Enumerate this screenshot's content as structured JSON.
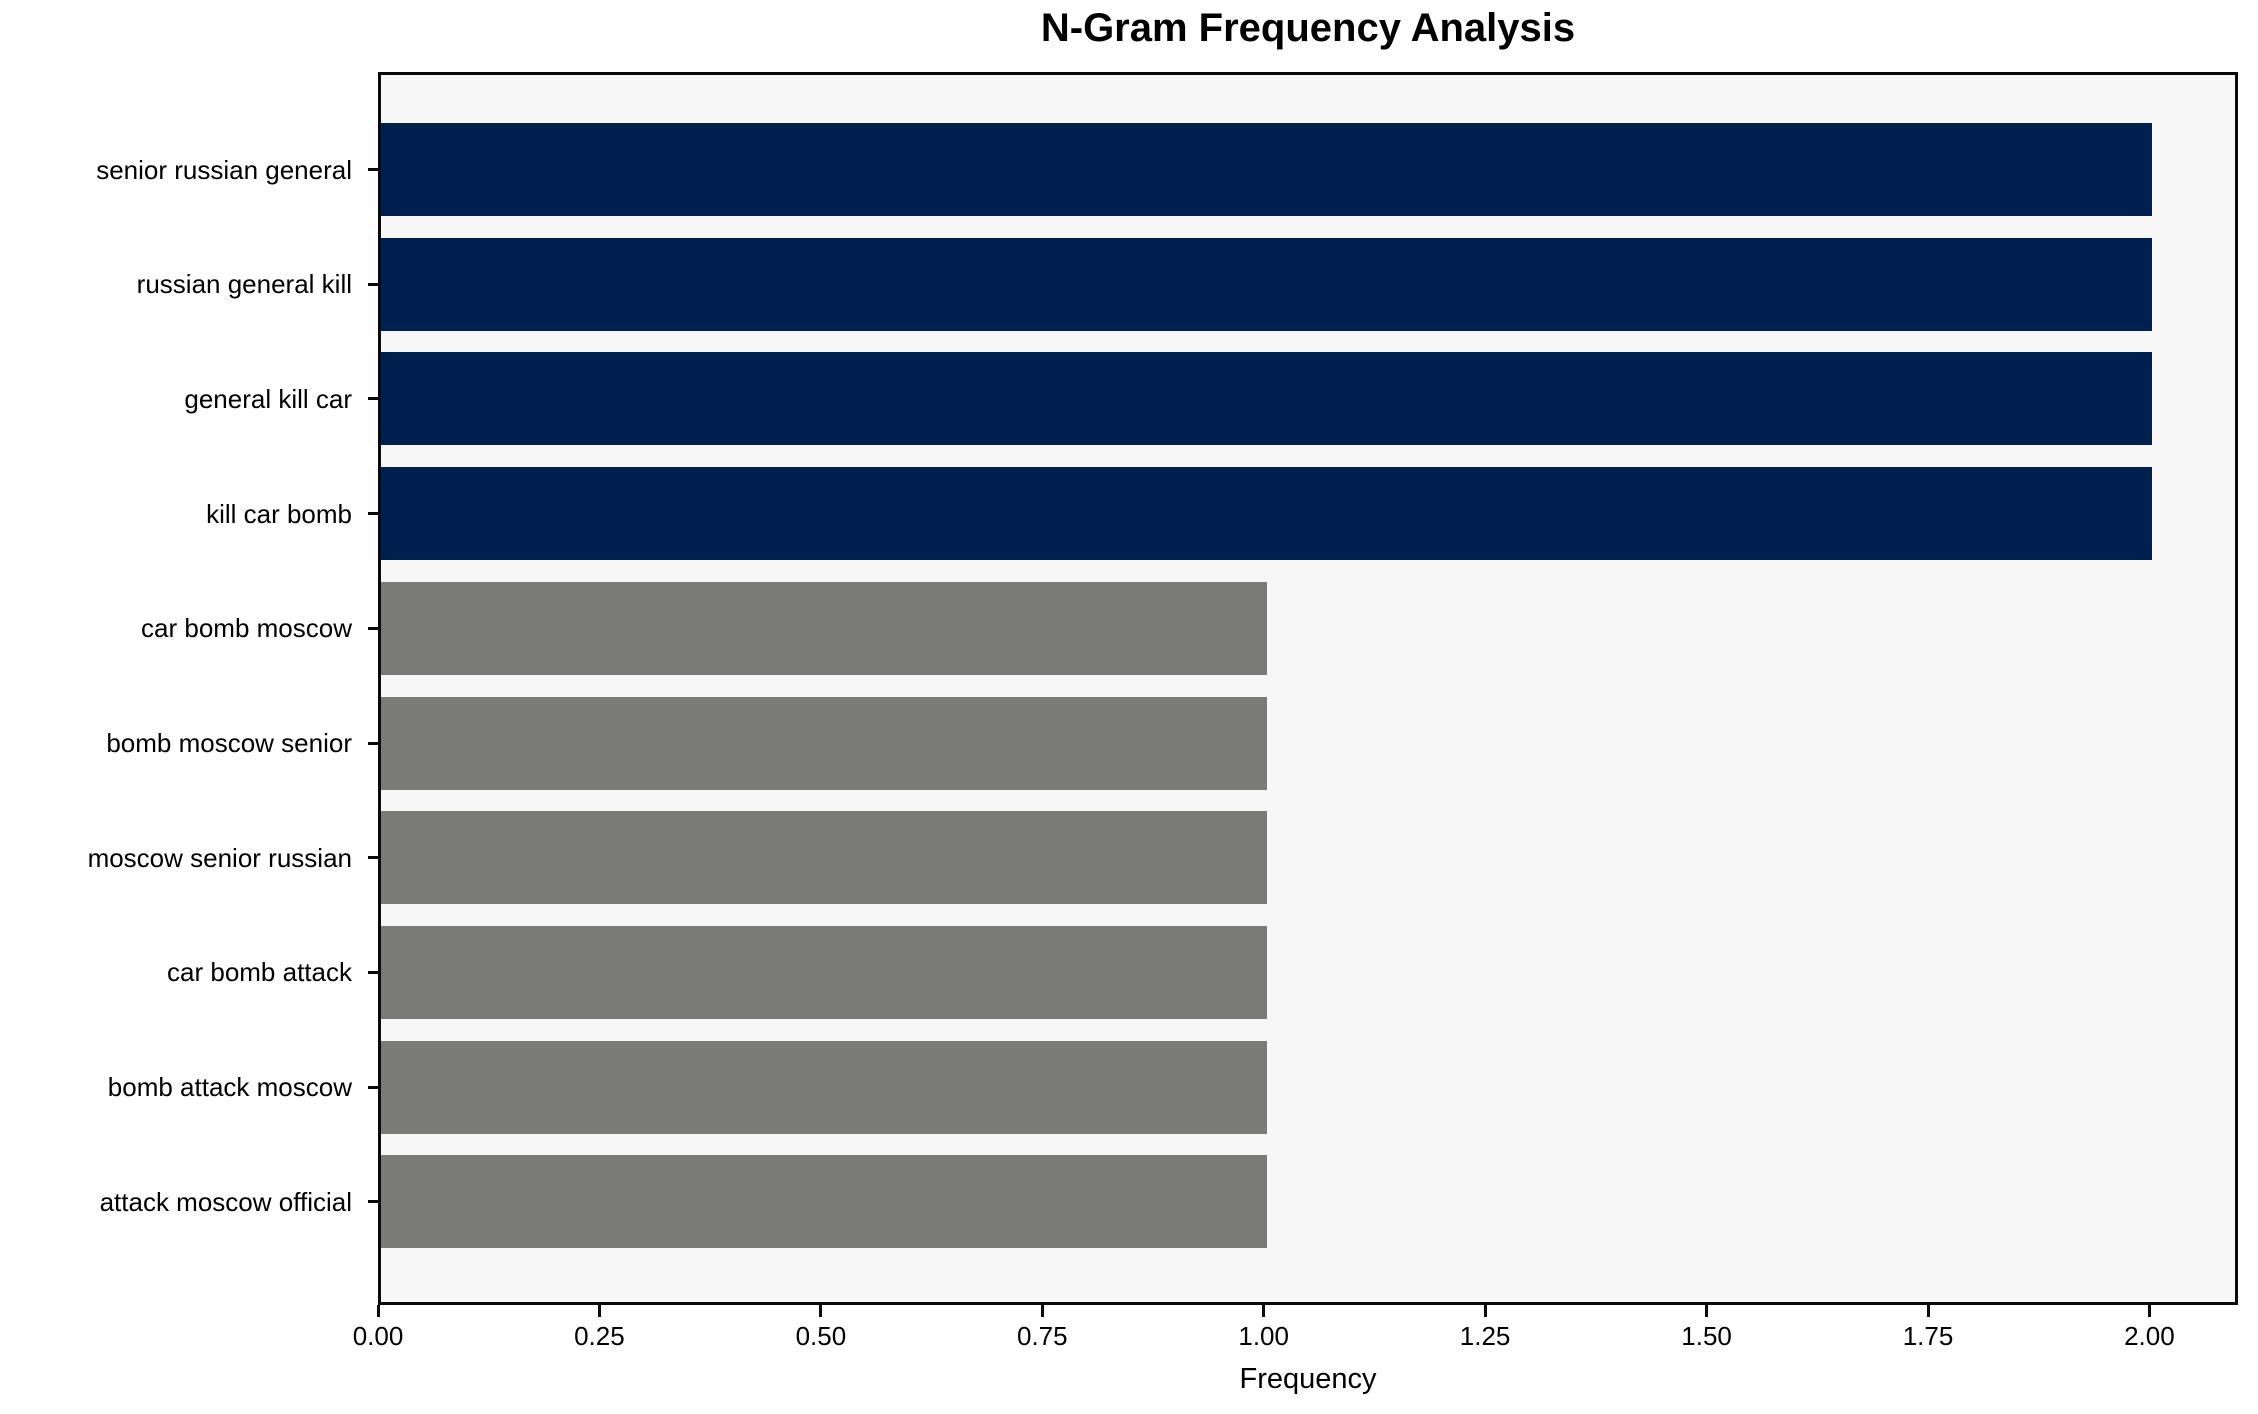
{
  "chart_data": {
    "type": "bar",
    "orientation": "horizontal",
    "title": "N-Gram Frequency Analysis",
    "xlabel": "Frequency",
    "ylabel": "",
    "categories": [
      "senior russian general",
      "russian general kill",
      "general kill car",
      "kill car bomb",
      "car bomb moscow",
      "bomb moscow senior",
      "moscow senior russian",
      "car bomb attack",
      "bomb attack moscow",
      "attack moscow official"
    ],
    "values": [
      2,
      2,
      2,
      2,
      1,
      1,
      1,
      1,
      1,
      1
    ],
    "bar_colors": [
      "#002150",
      "#002150",
      "#002150",
      "#002150",
      "#7a7a76",
      "#7a7a76",
      "#7a7a76",
      "#7a7a76",
      "#7a7a76",
      "#7a7a76"
    ],
    "xlim": [
      0,
      2.1
    ],
    "xtick_labels": [
      "0.00",
      "0.25",
      "0.50",
      "0.75",
      "1.00",
      "1.25",
      "1.50",
      "1.75",
      "2.00"
    ],
    "xtick_values": [
      0,
      0.25,
      0.5,
      0.75,
      1.0,
      1.25,
      1.5,
      1.75,
      2.0
    ],
    "grid": false,
    "legend_position": "none",
    "plot_background": "#f7f7f7",
    "figure_background": "#ffffff",
    "spine_color": "#0a0a0a",
    "highlight_color": "#002150",
    "base_color": "#7a7a76"
  }
}
